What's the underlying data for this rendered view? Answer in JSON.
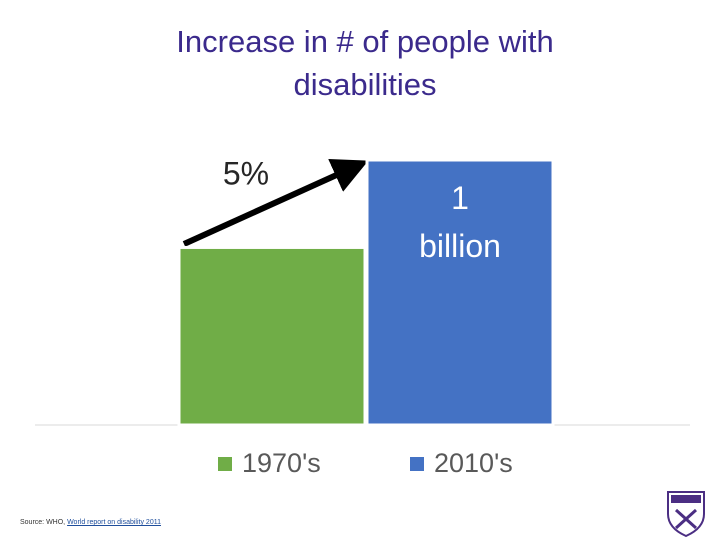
{
  "chart_data": {
    "type": "bar",
    "title": "Increase in # of people with disabilities",
    "categories": [
      "1970's",
      "2010's"
    ],
    "values": [
      0.67,
      1
    ],
    "value_labels": [
      null,
      "1 billion"
    ],
    "colors": [
      "#70ad47",
      "#4472c4"
    ],
    "annotation": "5%",
    "legend": "bottom"
  },
  "source": {
    "prefix": "Source: WHO, ",
    "link": "World report on disability 2011"
  }
}
